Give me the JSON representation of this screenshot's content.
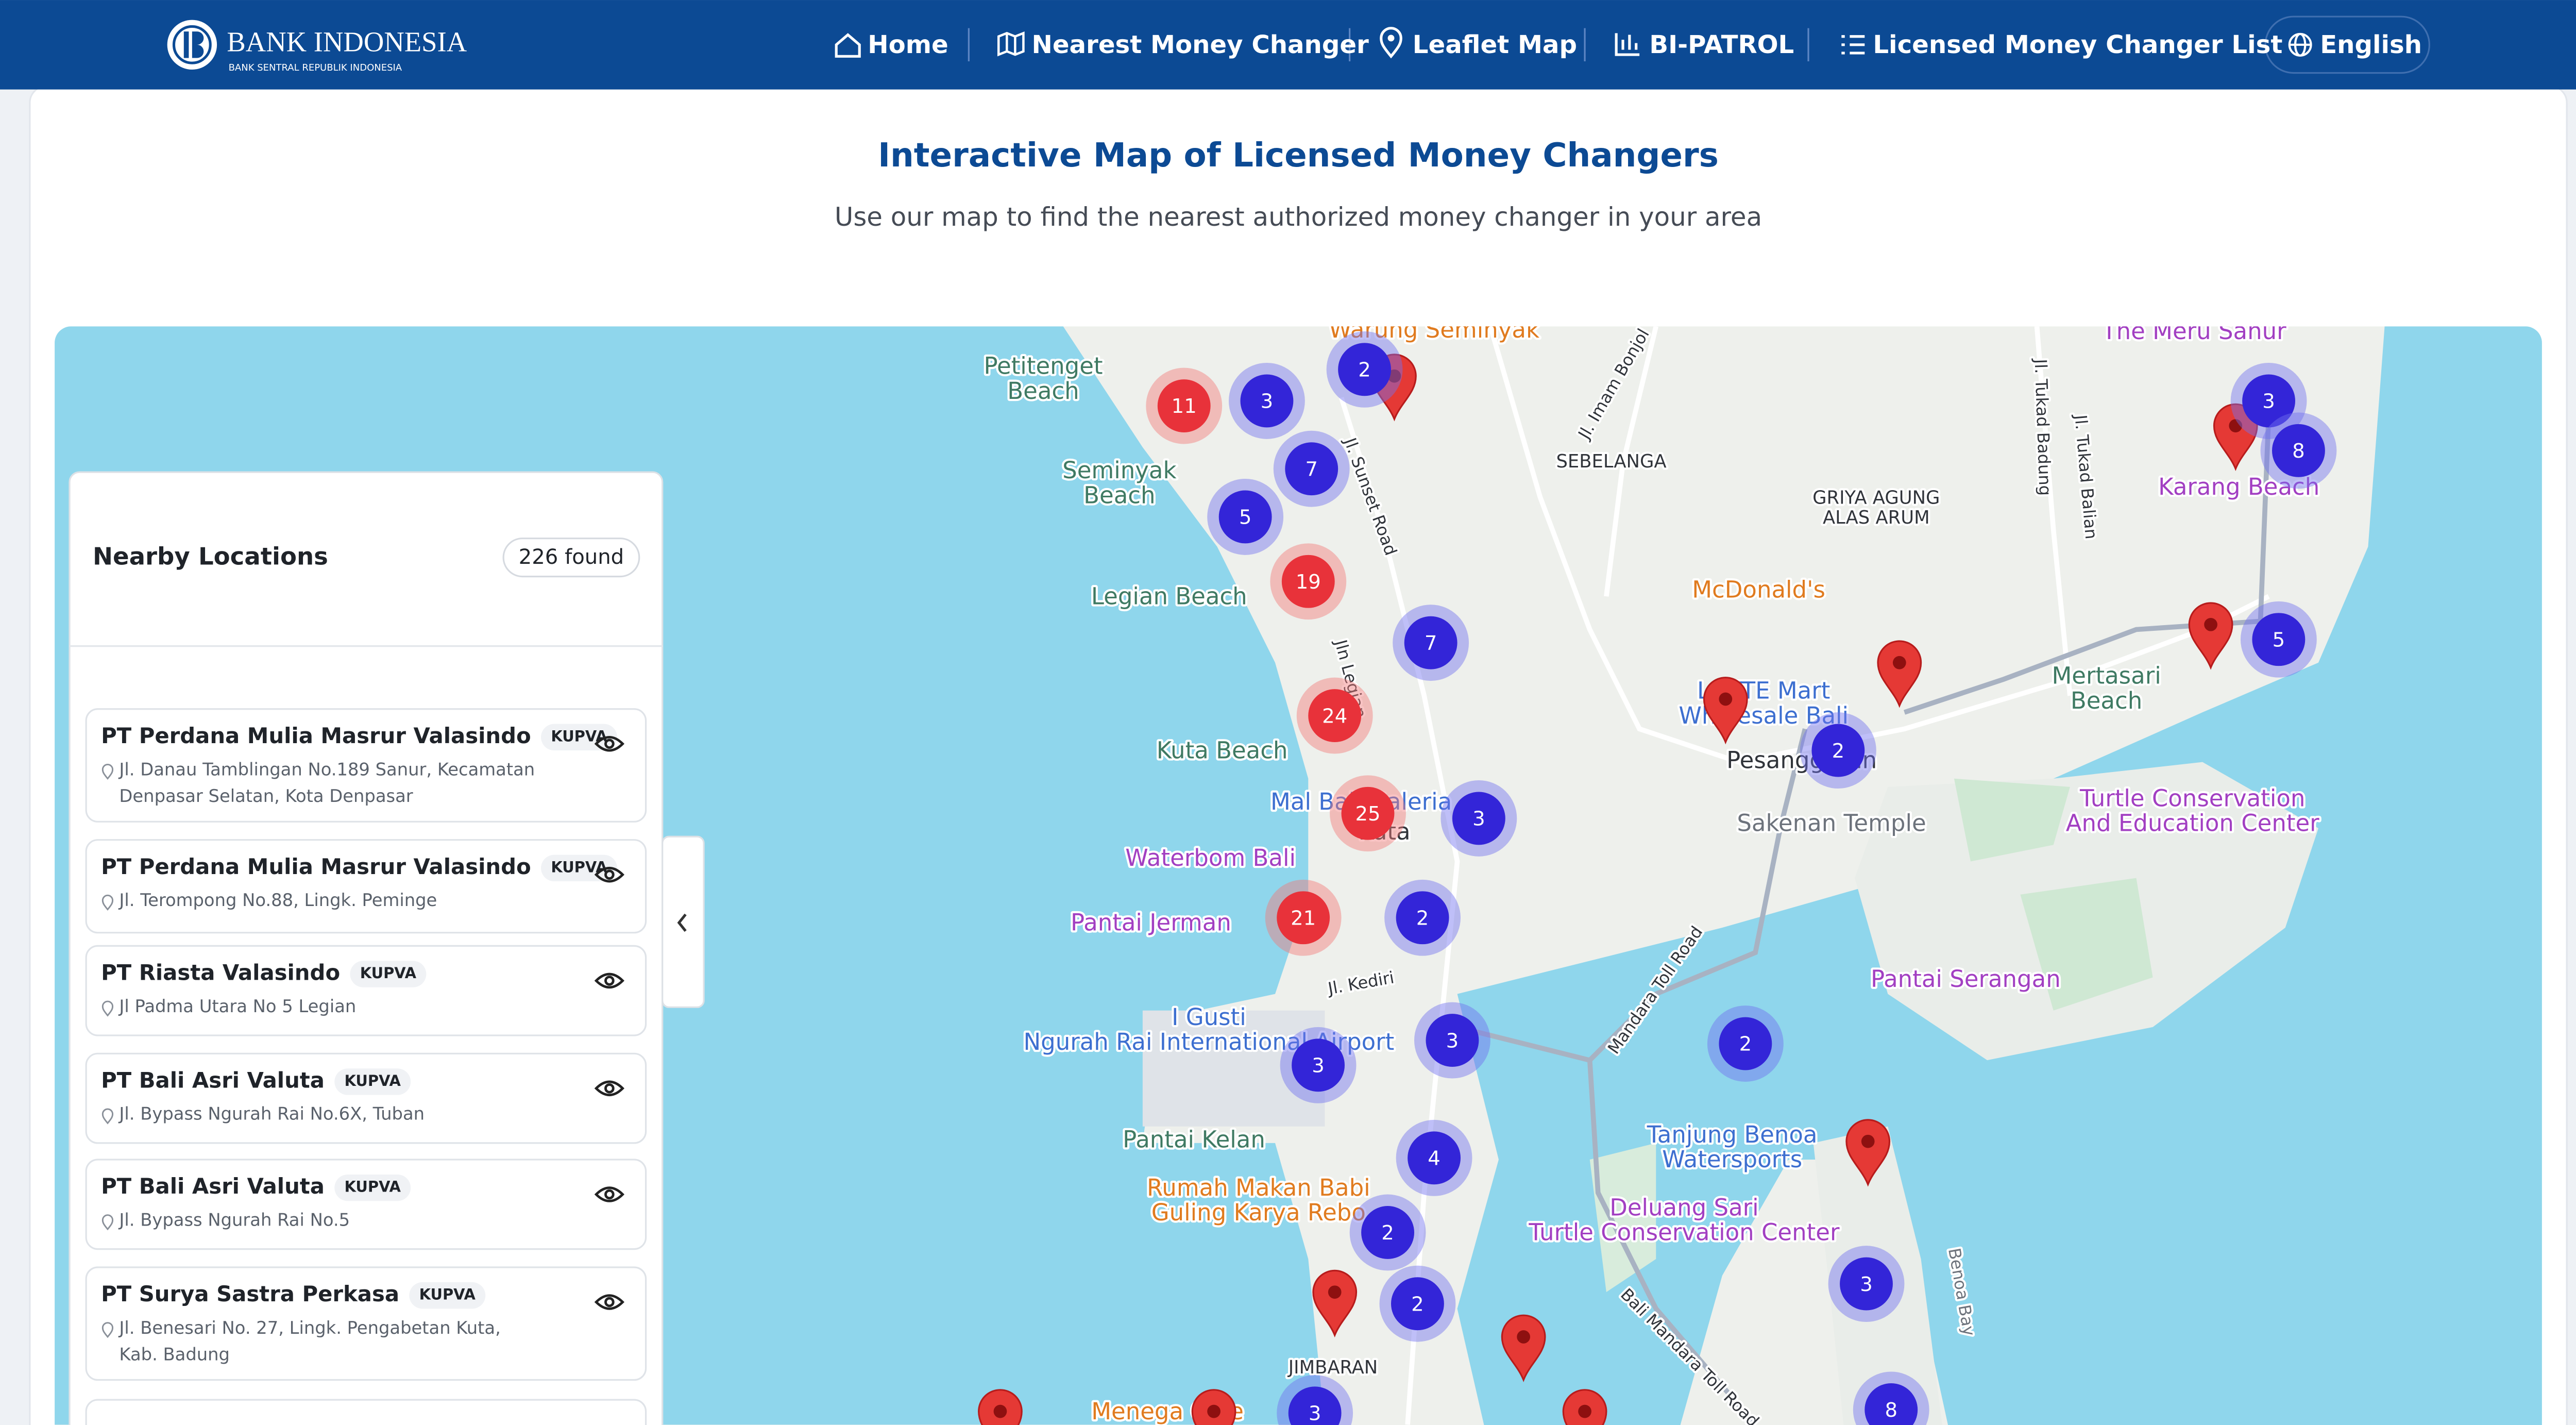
{
  "header": {
    "brand": "BANK INDONESIA",
    "brand_sub": "BANK SENTRAL REPUBLIK INDONESIA",
    "nav": [
      "Home",
      "Nearest Money Changer",
      "Leaflet Map",
      "BI-PATROL",
      "Licensed Money Changer List"
    ],
    "language": "English"
  },
  "intro": {
    "title": "Interactive Map of Licensed Money Changers",
    "subtitle": "Use our map to find the nearest authorized money changer in your area"
  },
  "sidebar": {
    "title": "Nearby Locations",
    "count": "226 found",
    "items": [
      {
        "name": "PT Perdana Mulia Masrur Valasindo",
        "badge": "KUPVA",
        "address": "Jl. Danau Tamblingan No.189 Sanur, Kecamatan Denpasar Selatan, Kota Denpasar"
      },
      {
        "name": "PT Perdana Mulia Masrur Valasindo",
        "badge": "KUPVA",
        "address": "Jl. Terompong No.88, Lingk. Peminge"
      },
      {
        "name": "PT Riasta Valasindo",
        "badge": "KUPVA",
        "address": "Jl Padma Utara No 5 Legian"
      },
      {
        "name": "PT Bali Asri Valuta",
        "badge": "KUPVA",
        "address": "Jl. Bypass Ngurah Rai No.6X, Tuban"
      },
      {
        "name": "PT Bali Asri Valuta",
        "badge": "KUPVA",
        "address": "Jl. Bypass Ngurah Rai No.5"
      },
      {
        "name": "PT Surya Sastra Perkasa",
        "badge": "KUPVA",
        "address": "Jl. Benesari No. 27, Lingk. Pengabetan Kuta, Kab. Badung"
      }
    ]
  },
  "map": {
    "labels": [
      "Warung Seminyak",
      "Petitenget Beach",
      "Seminyak Beach",
      "Legian Beach",
      "Kuta Beach",
      "Mal Bali Galeria",
      "Kuta",
      "Waterbom Bali",
      "Pantai Jerman",
      "I Gusti Ngurah Rai International Airport",
      "Pantai Kelan",
      "Rumah Makan Babi Guling Karya Rebo",
      "Menega Cafe",
      "JIMBARAN",
      "SEBELANGA",
      "GRIYA AGUNG ALAS ARUM",
      "McDonald's",
      "LOTTE Mart Wholesale Bali",
      "Pesanggaran",
      "Sakenan Temple",
      "Turtle Conservation And Education Center",
      "Mertasari Beach",
      "Karang Beach",
      "The Meru Sanur",
      "Pantai Serangan",
      "Tanjung Benoa Watersports",
      "Deluang Sari Turtle Conservation Center",
      "Jl. Sunset Road",
      "Jln Legian",
      "Jl. Kediri",
      "Jl. Imam Bonjol",
      "Jl. Tukad Badung",
      "Jl. Tukad Balian",
      "Mandara Toll Road",
      "Bali Mandara Toll Road",
      "Benoa Bay"
    ],
    "clusters": [
      {
        "count": 11,
        "color": "red"
      },
      {
        "count": 3,
        "color": "blue"
      },
      {
        "count": 2,
        "color": "blue"
      },
      {
        "count": 7,
        "color": "blue"
      },
      {
        "count": 5,
        "color": "blue"
      },
      {
        "count": 19,
        "color": "red"
      },
      {
        "count": 7,
        "color": "blue"
      },
      {
        "count": 24,
        "color": "red"
      },
      {
        "count": 25,
        "color": "red"
      },
      {
        "count": 3,
        "color": "blue"
      },
      {
        "count": 21,
        "color": "red"
      },
      {
        "count": 2,
        "color": "blue"
      },
      {
        "count": 3,
        "color": "blue"
      },
      {
        "count": 3,
        "color": "blue"
      },
      {
        "count": 4,
        "color": "blue"
      },
      {
        "count": 2,
        "color": "blue"
      },
      {
        "count": 2,
        "color": "blue"
      },
      {
        "count": 2,
        "color": "blue"
      },
      {
        "count": 2,
        "color": "blue"
      },
      {
        "count": 3,
        "color": "blue"
      },
      {
        "count": 3,
        "color": "blue"
      },
      {
        "count": 8,
        "color": "blue"
      },
      {
        "count": 5,
        "color": "blue"
      },
      {
        "count": 3,
        "color": "blue"
      },
      {
        "count": 8,
        "color": "blue"
      }
    ]
  }
}
